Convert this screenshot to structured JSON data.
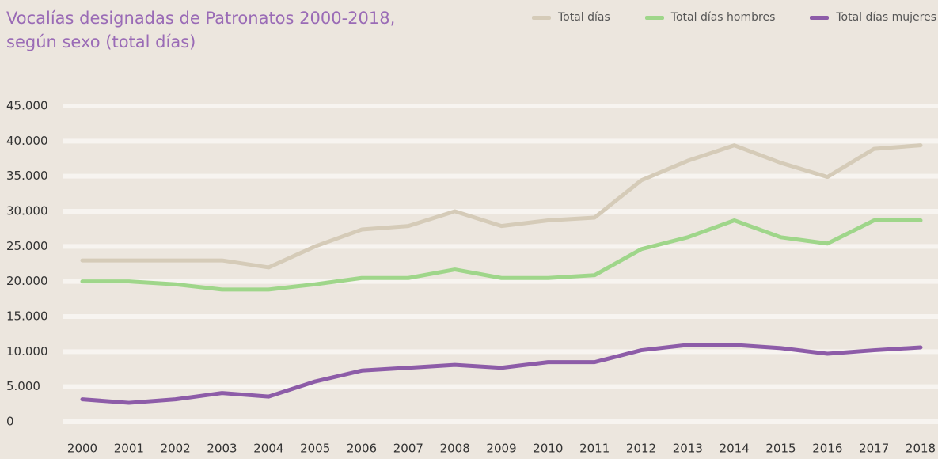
{
  "chart_data": {
    "type": "line",
    "title": "Vocalías designadas de Patronatos 2000-2018, según sexo (total días)",
    "categories": [
      "2000",
      "2001",
      "2002",
      "2003",
      "2004",
      "2005",
      "2006",
      "2007",
      "2008",
      "2009",
      "2010",
      "2011",
      "2012",
      "2013",
      "2014",
      "2015",
      "2016",
      "2017",
      "2018"
    ],
    "series": [
      {
        "name": "Total días",
        "color": "#d5cbb8",
        "values": [
          23000,
          23000,
          23000,
          23000,
          22000,
          25000,
          27400,
          27900,
          30000,
          27900,
          28700,
          29100,
          34400,
          37200,
          39400,
          36900,
          34900,
          38900,
          39400
        ]
      },
      {
        "name": "Total días hombres",
        "color": "#9fd68a",
        "values": [
          20000,
          20000,
          19600,
          18850,
          18850,
          19600,
          20500,
          20500,
          21700,
          20500,
          20500,
          20900,
          24600,
          26300,
          28700,
          26300,
          25400,
          28700,
          28700
        ]
      },
      {
        "name": "Total días mujeres",
        "color": "#8d5ca8",
        "values": [
          3200,
          2700,
          3200,
          4100,
          3600,
          5750,
          7300,
          7700,
          8100,
          7700,
          8500,
          8500,
          10200,
          10950,
          10950,
          10500,
          9700,
          10200,
          10600
        ]
      }
    ],
    "ylim": [
      0,
      45000
    ],
    "yticks": [
      0,
      {
        "value": 5000,
        "label": "5.000"
      },
      {
        "value": 10000,
        "label": "10.000"
      },
      {
        "value": 15000,
        "label": "15.000"
      },
      {
        "value": 20000,
        "label": "20.000"
      },
      {
        "value": 25000,
        "label": "25.000"
      },
      {
        "value": 30000,
        "label": "30.000"
      },
      {
        "value": 35000,
        "label": "35.000"
      },
      {
        "value": 40000,
        "label": "40.000"
      },
      {
        "value": 45000,
        "label": "45.000"
      }
    ],
    "grid": true
  }
}
